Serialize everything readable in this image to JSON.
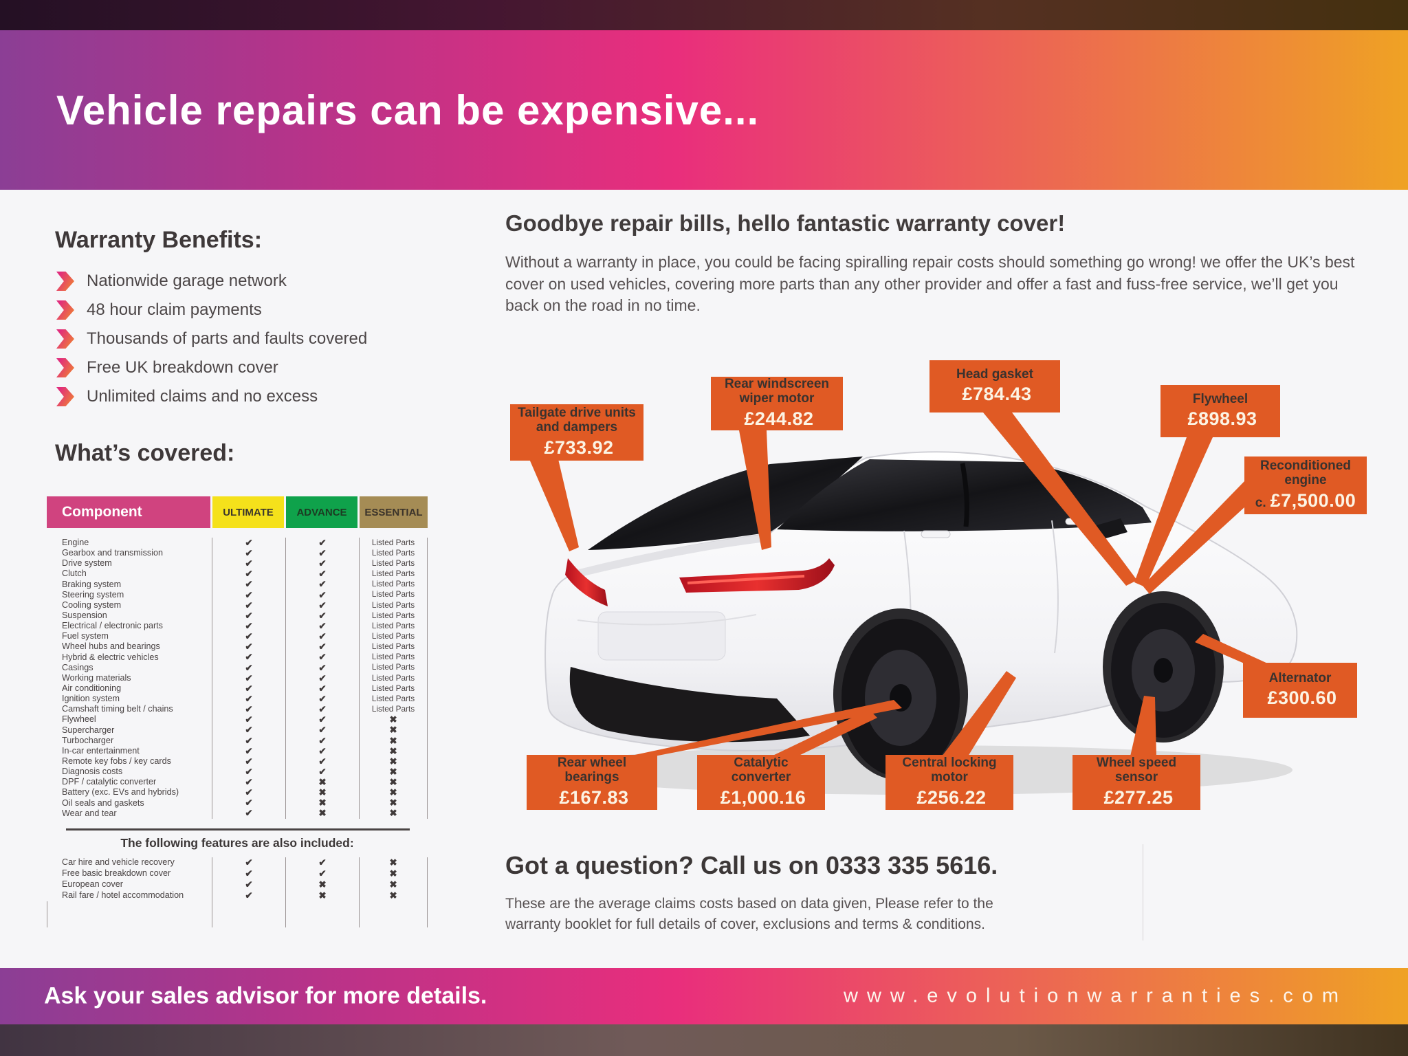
{
  "page": {
    "title": "Vehicle repairs can be expensive...",
    "footer_left": "Ask your sales advisor for more details.",
    "footer_right": "w w w . e v o l u t i o n w a r r a n t i e s . c o m",
    "footer_url_plain": "www.evolutionwarranties.com"
  },
  "benefits": {
    "heading": "Warranty Benefits:",
    "items": [
      "Nationwide garage network",
      "48 hour claim payments",
      "Thousands of parts and faults covered",
      "Free UK breakdown cover",
      "Unlimited claims and no excess"
    ]
  },
  "covered": {
    "heading": "What’s covered:",
    "columns": {
      "component": "Component",
      "ultimate": "ULTIMATE",
      "advance": "ADVANCE",
      "essential": "ESSENTIAL"
    },
    "column_colors": {
      "component": "#d0437f",
      "ultimate": "#f5e11b",
      "advance": "#0fa24b",
      "essential": "#a58c55"
    },
    "rows": [
      [
        "Engine",
        "check",
        "check",
        "Listed Parts"
      ],
      [
        "Gearbox and transmission",
        "check",
        "check",
        "Listed Parts"
      ],
      [
        "Drive system",
        "check",
        "check",
        "Listed Parts"
      ],
      [
        "Clutch",
        "check",
        "check",
        "Listed Parts"
      ],
      [
        "Braking system",
        "check",
        "check",
        "Listed Parts"
      ],
      [
        "Steering system",
        "check",
        "check",
        "Listed Parts"
      ],
      [
        "Cooling system",
        "check",
        "check",
        "Listed Parts"
      ],
      [
        "Suspension",
        "check",
        "check",
        "Listed Parts"
      ],
      [
        "Electrical / electronic parts",
        "check",
        "check",
        "Listed Parts"
      ],
      [
        "Fuel system",
        "check",
        "check",
        "Listed Parts"
      ],
      [
        "Wheel hubs and bearings",
        "check",
        "check",
        "Listed Parts"
      ],
      [
        "Hybrid & electric vehicles",
        "check",
        "check",
        "Listed Parts"
      ],
      [
        "Casings",
        "check",
        "check",
        "Listed Parts"
      ],
      [
        "Working materials",
        "check",
        "check",
        "Listed Parts"
      ],
      [
        "Air conditioning",
        "check",
        "check",
        "Listed Parts"
      ],
      [
        "Ignition system",
        "check",
        "check",
        "Listed Parts"
      ],
      [
        "Camshaft timing belt / chains",
        "check",
        "check",
        "Listed Parts"
      ],
      [
        "Flywheel",
        "check",
        "check",
        "cross"
      ],
      [
        "Supercharger",
        "check",
        "check",
        "cross"
      ],
      [
        "Turbocharger",
        "check",
        "check",
        "cross"
      ],
      [
        "In-car entertainment",
        "check",
        "check",
        "cross"
      ],
      [
        "Remote key fobs / key cards",
        "check",
        "check",
        "cross"
      ],
      [
        "Diagnosis costs",
        "check",
        "check",
        "cross"
      ],
      [
        "DPF / catalytic converter",
        "check",
        "cross",
        "cross"
      ],
      [
        "Battery (exc. EVs and hybrids)",
        "check",
        "cross",
        "cross"
      ],
      [
        "Oil seals and gaskets",
        "check",
        "cross",
        "cross"
      ],
      [
        "Wear and tear",
        "check",
        "cross",
        "cross"
      ]
    ],
    "features_heading": "The following features are also included:",
    "feature_rows": [
      [
        "Car hire and vehicle recovery",
        "check",
        "check",
        "cross"
      ],
      [
        "Free basic breakdown cover",
        "check",
        "check",
        "cross"
      ],
      [
        "European cover",
        "check",
        "cross",
        "cross"
      ],
      [
        "Rail fare / hotel accommodation",
        "check",
        "cross",
        "cross"
      ]
    ]
  },
  "promo": {
    "heading": "Goodbye repair bills, hello fantastic warranty cover!",
    "body": "Without a warranty in place, you could be facing spiralling repair costs should something go wrong! we offer the UK’s best cover on used vehicles, covering more parts than any other provider and offer a fast and fuss-free service, we’ll get you back on the road in no time."
  },
  "callouts": [
    {
      "label": "Tailgate drive units and dampers",
      "price": "£733.92"
    },
    {
      "label": "Rear windscreen wiper motor",
      "price": "£244.82"
    },
    {
      "label": "Head gasket",
      "price": "£784.43"
    },
    {
      "label": "Flywheel",
      "price": "£898.93"
    },
    {
      "label": "Reconditioned engine",
      "prefix": "c.",
      "price": "£7,500.00"
    },
    {
      "label": "Alternator",
      "price": "£300.60"
    },
    {
      "label": "Rear wheel bearings",
      "price": "£167.83"
    },
    {
      "label": "Catalytic converter",
      "price": "£1,000.16"
    },
    {
      "label": "Central locking motor",
      "price": "£256.22"
    },
    {
      "label": "Wheel speed sensor",
      "price": "£277.25"
    }
  ],
  "contact": {
    "heading": "Got a question? Call us on 0333 335 5616.",
    "disclaimer": "These are the average claims costs based on data given, Please refer to the warranty booklet for full details of cover, exclusions and terms & conditions."
  },
  "colors": {
    "callout_orange": "#e05a24",
    "header_gradient": [
      "#8b3e95",
      "#e92e7c",
      "#ee8f33"
    ],
    "check_color": "#3f3939"
  }
}
